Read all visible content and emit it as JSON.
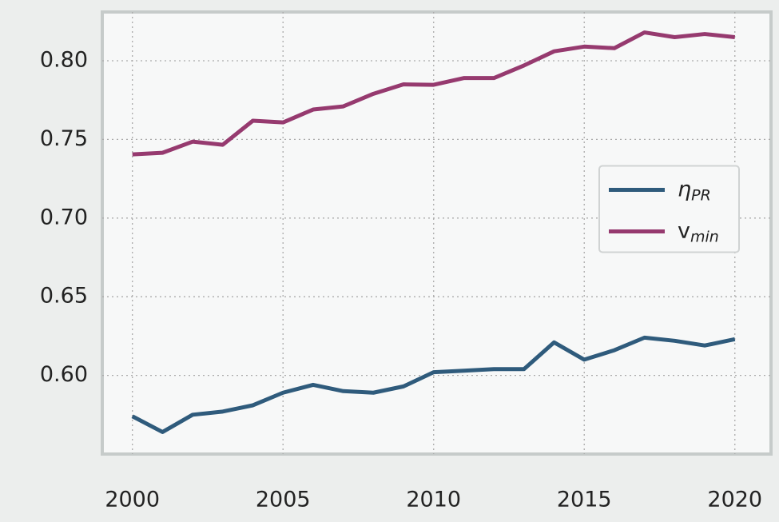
{
  "chart_data": {
    "type": "line",
    "x": [
      2000,
      2001,
      2002,
      2003,
      2004,
      2005,
      2006,
      2007,
      2008,
      2009,
      2010,
      2011,
      2012,
      2013,
      2014,
      2015,
      2016,
      2017,
      2018,
      2019,
      2020
    ],
    "series": [
      {
        "name": "η",
        "name_sub": "PR",
        "color": "#2f5b7c",
        "values": [
          0.574,
          0.564,
          0.575,
          0.577,
          0.581,
          0.589,
          0.594,
          0.59,
          0.589,
          0.593,
          0.602,
          0.603,
          0.604,
          0.604,
          0.621,
          0.61,
          0.616,
          0.624,
          0.622,
          0.619,
          0.623
        ]
      },
      {
        "name": "v",
        "name_sub": "min",
        "color": "#963a6f",
        "values": [
          0.7405,
          0.7415,
          0.7486,
          0.7466,
          0.7619,
          0.7608,
          0.769,
          0.771,
          0.779,
          0.785,
          0.7847,
          0.789,
          0.789,
          0.797,
          0.806,
          0.809,
          0.808,
          0.818,
          0.815,
          0.817,
          0.815
        ]
      }
    ],
    "xlim": [
      1999,
      2021.2
    ],
    "xticks": [
      2000,
      2005,
      2010,
      2015,
      2020
    ],
    "ylim": [
      0.55,
      0.831
    ],
    "yticks": [
      {
        "value": 0.6,
        "label": "0.60"
      },
      0.65,
      {
        "value": 0.7,
        "label": "0.70"
      },
      0.75,
      {
        "value": 0.8,
        "label": "0.80"
      }
    ],
    "grid": true,
    "legend": "center right"
  }
}
